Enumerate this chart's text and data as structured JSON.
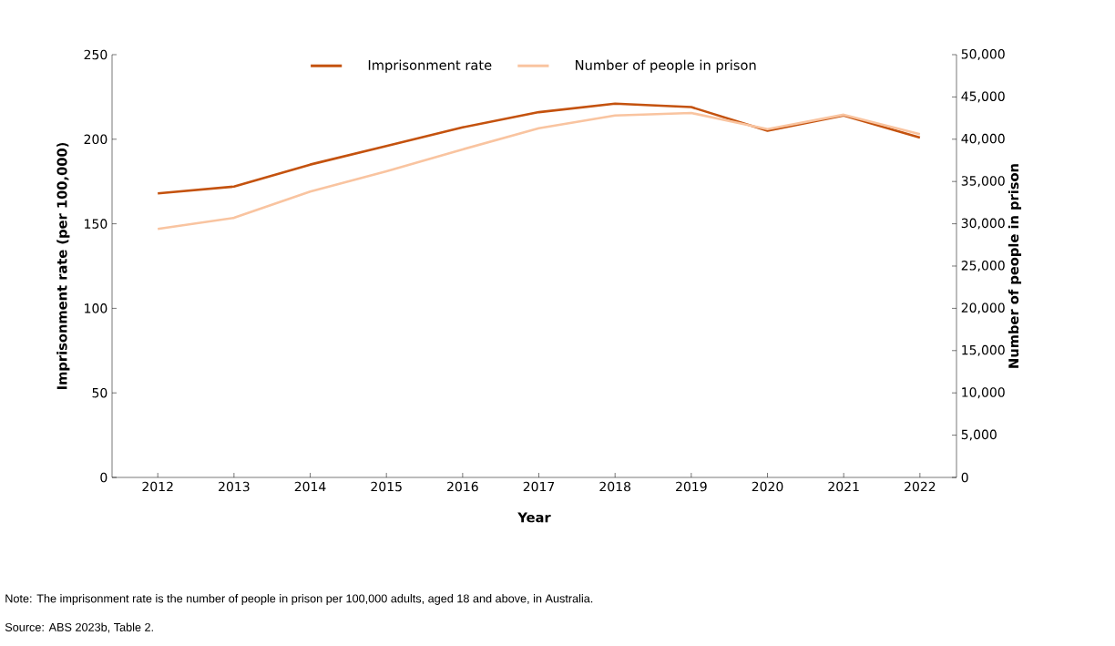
{
  "chart_data": {
    "type": "line",
    "xlabel": "Year",
    "ylabel": "Imprisonment rate (per 100,000)",
    "y2label": "Number of people in prison",
    "categories": [
      "2012",
      "2013",
      "2014",
      "2015",
      "2016",
      "2017",
      "2018",
      "2019",
      "2020",
      "2021",
      "2022"
    ],
    "series": [
      {
        "name": "Imprisonment rate",
        "color": "#c4520e",
        "values": [
          168,
          172,
          185,
          196,
          207,
          216,
          221,
          219,
          205,
          214,
          201
        ]
      },
      {
        "name": "Number of people in prison",
        "color": "#f9c4a0",
        "axis": "y2",
        "values": [
          29400,
          30700,
          33800,
          36200,
          38800,
          41300,
          42800,
          43100,
          41200,
          42900,
          40600
        ]
      }
    ],
    "ylim": [
      0,
      250
    ],
    "yticks": [
      0,
      50,
      100,
      150,
      200,
      250
    ],
    "y2lim": [
      0,
      50000
    ],
    "y2ticks": [
      0,
      {
        "value": 5000,
        "label": "5,000"
      },
      {
        "value": 10000,
        "label": "10,000"
      },
      {
        "value": 15000,
        "label": "15,000"
      },
      {
        "value": 20000,
        "label": "20,000"
      },
      {
        "value": 25000,
        "label": "25,000"
      },
      {
        "value": 30000,
        "label": "30,000"
      },
      {
        "value": 35000,
        "label": "35,000"
      },
      {
        "value": 40000,
        "label": "40,000"
      },
      {
        "value": 45000,
        "label": "45,000"
      },
      {
        "value": 50000,
        "label": "50,000"
      }
    ],
    "grid": false,
    "legend": "top",
    "marker": "none",
    "line_style": "solid",
    "annotations": [
      "Note: The imprisonment rate is the number of people in prison per 100,000 adults, aged 18 and above, in Australia.",
      "Source: ABS 2023b, Table 2."
    ]
  }
}
